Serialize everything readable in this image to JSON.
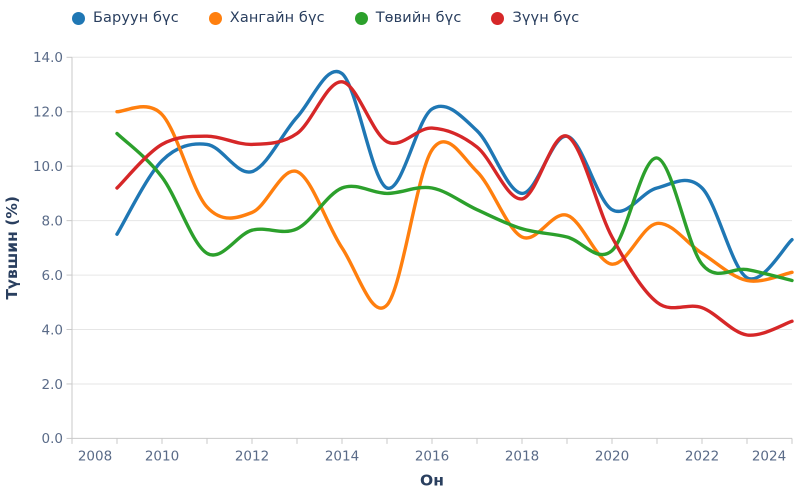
{
  "legend": {
    "items": [
      {
        "label": "Баруун бүс",
        "color": "#1f77b4"
      },
      {
        "label": "Хангайн бүс",
        "color": "#ff7f0e"
      },
      {
        "label": "Төвийн бүс",
        "color": "#2ca02c"
      },
      {
        "label": "Зүүн бүс",
        "color": "#d62728"
      }
    ]
  },
  "axes": {
    "x_title": "Он",
    "y_title": "Түвшин (%)",
    "x_tick_labels": [
      "2008",
      "2010",
      "2012",
      "2014",
      "2016",
      "2018",
      "2020",
      "2022",
      "2024"
    ],
    "y_tick_labels": [
      "0.0",
      "2.0",
      "4.0",
      "6.0",
      "8.0",
      "10.0",
      "12.0",
      "14.0"
    ]
  },
  "chart_data": {
    "type": "line",
    "x": [
      2009,
      2010,
      2011,
      2012,
      2013,
      2014,
      2015,
      2016,
      2017,
      2018,
      2019,
      2020,
      2021,
      2022,
      2023,
      2024
    ],
    "series": [
      {
        "name": "Баруун бүс",
        "color": "#1f77b4",
        "values": [
          7.5,
          10.2,
          10.8,
          9.8,
          11.8,
          13.4,
          9.2,
          12.1,
          11.3,
          9.0,
          11.1,
          8.4,
          9.2,
          9.2,
          5.9,
          7.3
        ]
      },
      {
        "name": "Хангайн бүс",
        "color": "#ff7f0e",
        "values": [
          12.0,
          11.9,
          8.5,
          8.3,
          9.8,
          7.0,
          4.9,
          10.6,
          9.8,
          7.4,
          8.2,
          6.4,
          7.9,
          6.8,
          5.8,
          6.1
        ]
      },
      {
        "name": "Төвийн бүс",
        "color": "#2ca02c",
        "values": [
          11.2,
          9.6,
          6.8,
          7.65,
          7.7,
          9.2,
          9.0,
          9.2,
          8.4,
          7.7,
          7.4,
          6.9,
          10.3,
          6.4,
          6.2,
          5.8
        ]
      },
      {
        "name": "Зүүн бүс",
        "color": "#d62728",
        "values": [
          9.2,
          10.8,
          11.1,
          10.8,
          11.2,
          13.1,
          10.9,
          11.4,
          10.7,
          8.8,
          11.1,
          7.4,
          5.0,
          4.8,
          3.8,
          4.3
        ]
      }
    ],
    "title": "",
    "xlabel": "Он",
    "ylabel": "Түвшин (%)",
    "xlim": [
      2008,
      2024
    ],
    "ylim": [
      0,
      14
    ],
    "x_major_tick_step": 2,
    "x_minor_tick_step": 1,
    "y_tick_step": 2,
    "grid": true,
    "legend_position": "top",
    "line_smoothing": "spline"
  },
  "style": {
    "grid_color": "#e6e6e6",
    "axis_color": "#c9c9c9",
    "tick_label_color": "#5a6b88",
    "axis_title_color": "#2a3f5f",
    "line_width": 3.4
  }
}
